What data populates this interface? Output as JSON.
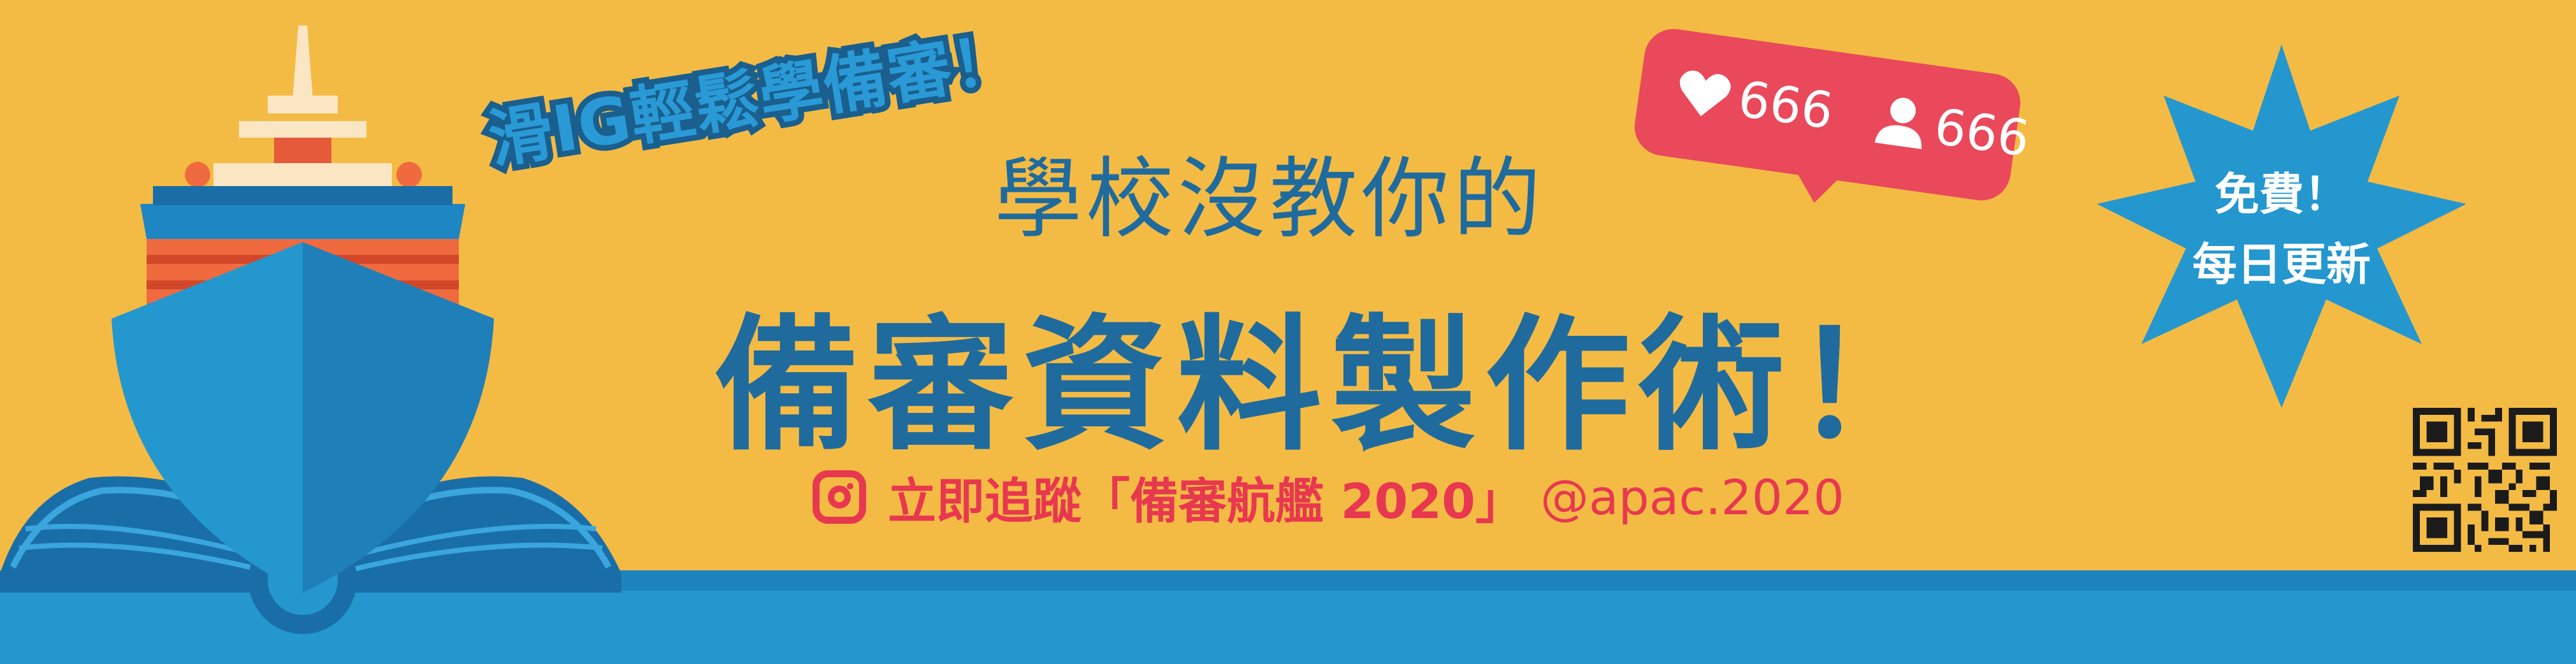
{
  "tagline": "滑IG輕鬆學備審！",
  "subtitle": "學校沒教你的",
  "title": "備審資料製作術！",
  "follow": {
    "text": "立即追蹤「備審航艦 2020」",
    "handle": "@apac.2020"
  },
  "notification": {
    "likes": "666",
    "followers": "666"
  },
  "badge": {
    "line1": "免費！",
    "line2": "每日更新"
  },
  "colors": {
    "background": "#f4bb44",
    "primary_blue": "#1f6b9e",
    "accent_red": "#e8384f",
    "band_blue": "#2497cf"
  },
  "icons": [
    "ship-book-illustration",
    "instagram-icon",
    "heart-icon",
    "person-icon",
    "starburst-badge",
    "qr-code"
  ]
}
